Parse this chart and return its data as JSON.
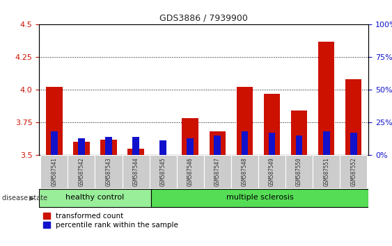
{
  "title": "GDS3886 / 7939900",
  "samples": [
    "GSM587541",
    "GSM587542",
    "GSM587543",
    "GSM587544",
    "GSM587545",
    "GSM587546",
    "GSM587547",
    "GSM587548",
    "GSM587549",
    "GSM587550",
    "GSM587551",
    "GSM587552"
  ],
  "red_values": [
    4.02,
    3.6,
    3.62,
    3.55,
    3.5,
    3.78,
    3.68,
    4.02,
    3.97,
    3.84,
    4.37,
    4.08
  ],
  "blue_pct": [
    18,
    13,
    14,
    14,
    11,
    13,
    15,
    18,
    17,
    15,
    18,
    17
  ],
  "ylim": [
    3.5,
    4.5
  ],
  "yticks": [
    3.5,
    3.75,
    4.0,
    4.25,
    4.5
  ],
  "right_yticks": [
    0,
    25,
    50,
    75,
    100
  ],
  "bar_width": 0.6,
  "blue_bar_width": 0.25,
  "red_color": "#cc1100",
  "blue_color": "#1111cc",
  "healthy_color": "#99ee99",
  "ms_color": "#55dd55",
  "healthy_samples": 4,
  "left_axis_color": "#cc1100",
  "right_axis_color": "#1111cc",
  "grid_color": "#000000",
  "legend_red_label": "transformed count",
  "legend_blue_label": "percentile rank within the sample",
  "disease_label": "disease state",
  "healthy_label": "healthy control",
  "ms_label": "multiple sclerosis"
}
